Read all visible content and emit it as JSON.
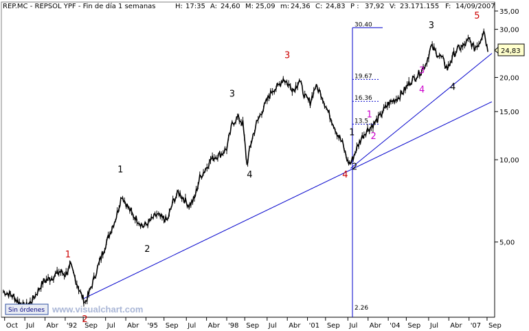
{
  "header": {
    "symbol": "REP.MC - REPSOL YPF - Fin de día 1 semanas",
    "fields": [
      {
        "key": "H:",
        "value": "17:35",
        "color": "#000080"
      },
      {
        "key": "A:",
        "value": "24,60",
        "color": "#000080"
      },
      {
        "key": "M:",
        "value": "25,09",
        "color": "#000080"
      },
      {
        "key": "m:",
        "value": "24,36",
        "color": "#000080"
      },
      {
        "key": "C:",
        "value": "24,83",
        "color": "#000080"
      },
      {
        "key": "P :",
        "value": "37,92",
        "color": "#cc0000"
      },
      {
        "key": "V:",
        "value": "23.171.155",
        "color": "#000080"
      },
      {
        "key": "F:",
        "value": "14/09/2007",
        "color": "#000080"
      }
    ]
  },
  "watermark": "www.visualchart.com",
  "orders_button": "Sin órdenes",
  "last_price_label": "24,83",
  "chart_data": {
    "type": "line",
    "scale": "log",
    "ylim": [
      2.7,
      35
    ],
    "y_ticks": [
      "35,00",
      "30,00",
      "25,00",
      "20,00",
      "15,00",
      "10,00",
      "5,00"
    ],
    "y_tick_values": [
      35,
      30,
      25,
      20,
      15,
      10,
      5
    ],
    "x_ticks": [
      "Oct",
      "Jul",
      "Abr",
      "'92",
      "Sep",
      "Jul",
      "Abr",
      "'95",
      "Sep",
      "Jul",
      "Abr",
      "'98",
      "Sep",
      "Jul",
      "Abr",
      "'01",
      "Sep",
      "Jul",
      "Abr",
      "'04",
      "Sep",
      "Jul",
      "Abr",
      "'07",
      "Sep"
    ],
    "x_tick_dates": [
      1989.75,
      1990.5,
      1991.25,
      1992.0,
      1992.67,
      1993.5,
      1994.25,
      1995.0,
      1995.67,
      1996.5,
      1997.25,
      1998.0,
      1998.67,
      1999.5,
      2000.25,
      2001.0,
      2001.67,
      2002.5,
      2003.25,
      2004.0,
      2004.67,
      2005.5,
      2006.25,
      2007.0,
      2007.67
    ],
    "xlim": [
      1989.68,
      2007.85
    ],
    "series": [
      {
        "color": "#000000",
        "x": [
          1989.7,
          1990.0,
          1990.3,
          1990.5,
          1990.7,
          1990.9,
          1991.2,
          1991.5,
          1991.8,
          1992.0,
          1992.2,
          1992.4,
          1992.6,
          1992.75,
          1993.0,
          1993.3,
          1993.6,
          1993.9,
          1994.1,
          1994.3,
          1994.5,
          1994.7,
          1994.9,
          1995.1,
          1995.4,
          1995.6,
          1995.8,
          1996.0,
          1996.2,
          1996.4,
          1996.6,
          1996.8,
          1997.0,
          1997.2,
          1997.4,
          1997.6,
          1997.8,
          1998.0,
          1998.2,
          1998.4,
          1998.6,
          1998.75,
          1998.9,
          1999.1,
          1999.3,
          1999.5,
          1999.7,
          1999.9,
          2000.1,
          2000.3,
          2000.5,
          2000.7,
          2000.9,
          2001.1,
          2001.3,
          2001.5,
          2001.7,
          2001.9,
          2002.1,
          2002.3,
          2002.5,
          2002.6,
          2002.8,
          2003.0,
          2003.2,
          2003.4,
          2003.6,
          2003.8,
          2004.0,
          2004.2,
          2004.4,
          2004.6,
          2004.8,
          2005.0,
          2005.2,
          2005.4,
          2005.6,
          2005.8,
          2006.0,
          2006.2,
          2006.4,
          2006.6,
          2006.8,
          2007.0,
          2007.2,
          2007.4,
          2007.55,
          2007.7
        ],
        "y": [
          3.3,
          3.2,
          3.0,
          2.9,
          3.0,
          3.2,
          3.6,
          3.7,
          3.9,
          3.8,
          4.1,
          3.6,
          3.2,
          3.0,
          3.5,
          4.3,
          5.2,
          6.2,
          7.4,
          6.8,
          6.3,
          6.0,
          5.7,
          5.9,
          6.3,
          6.1,
          6.0,
          7.0,
          7.6,
          7.2,
          6.8,
          7.2,
          8.6,
          9.2,
          10.0,
          10.3,
          10.5,
          11.0,
          13.5,
          14.3,
          13.6,
          9.6,
          11.5,
          13.5,
          15.0,
          16.5,
          18.0,
          18.5,
          19.8,
          18.8,
          18.0,
          19.6,
          17.0,
          16.2,
          18.6,
          17.5,
          15.5,
          14.0,
          12.5,
          11.5,
          9.8,
          9.7,
          10.8,
          12.0,
          12.8,
          13.3,
          14.0,
          15.0,
          16.0,
          16.5,
          17.0,
          18.0,
          19.2,
          20.0,
          21.0,
          22.5,
          26.0,
          24.5,
          23.5,
          21.5,
          24.0,
          25.5,
          26.0,
          27.5,
          25.5,
          27.0,
          30.0,
          24.8
        ]
      }
    ],
    "trendlines": [
      {
        "color": "#0000cc",
        "x": [
          1992.67,
          2007.85
        ],
        "y": [
          3.1,
          16.3
        ]
      },
      {
        "color": "#0000cc",
        "x": [
          2002.6,
          2007.85
        ],
        "y": [
          9.3,
          24.5
        ]
      }
    ],
    "fibonacci": {
      "x_line": 2002.67,
      "levels": [
        {
          "label": "30.40",
          "value": 30.4
        },
        {
          "label": "19.67",
          "value": 19.67
        },
        {
          "label": "16.36",
          "value": 16.36
        },
        {
          "label": "13.5",
          "value": 13.5
        },
        {
          "label": "2.26",
          "value": 2.26
        }
      ]
    },
    "annotations": [
      {
        "text": "1",
        "x": 1992.1,
        "y": 4.4,
        "color": "#cc0000"
      },
      {
        "text": "2",
        "x": 1992.73,
        "y": 2.55,
        "color": "#cc0000"
      },
      {
        "text": "1",
        "x": 1994.05,
        "y": 9.0,
        "color": "#000000"
      },
      {
        "text": "2",
        "x": 1995.05,
        "y": 4.6,
        "color": "#000000"
      },
      {
        "text": "3",
        "x": 1998.2,
        "y": 17.0,
        "color": "#000000"
      },
      {
        "text": "4",
        "x": 1998.85,
        "y": 8.6,
        "color": "#000000"
      },
      {
        "text": "3",
        "x": 2000.25,
        "y": 23.5,
        "color": "#cc0000"
      },
      {
        "text": "4",
        "x": 2002.4,
        "y": 8.6,
        "color": "#cc0000"
      },
      {
        "text": "1",
        "x": 2002.65,
        "y": 12.3,
        "color": "#000000"
      },
      {
        "text": "2",
        "x": 2002.75,
        "y": 9.2,
        "color": "#000000"
      },
      {
        "text": "1",
        "x": 2003.3,
        "y": 14.3,
        "color": "#cc00cc"
      },
      {
        "text": "2",
        "x": 2003.45,
        "y": 11.9,
        "color": "#cc00cc"
      },
      {
        "text": "3",
        "x": 2005.25,
        "y": 20.7,
        "color": "#cc00cc"
      },
      {
        "text": "4",
        "x": 2005.25,
        "y": 17.6,
        "color": "#cc00cc"
      },
      {
        "text": "3",
        "x": 2005.6,
        "y": 30.3,
        "color": "#000000"
      },
      {
        "text": "4",
        "x": 2006.4,
        "y": 18.0,
        "color": "#000000"
      },
      {
        "text": "5",
        "x": 2007.3,
        "y": 32.8,
        "color": "#cc0000"
      }
    ]
  }
}
